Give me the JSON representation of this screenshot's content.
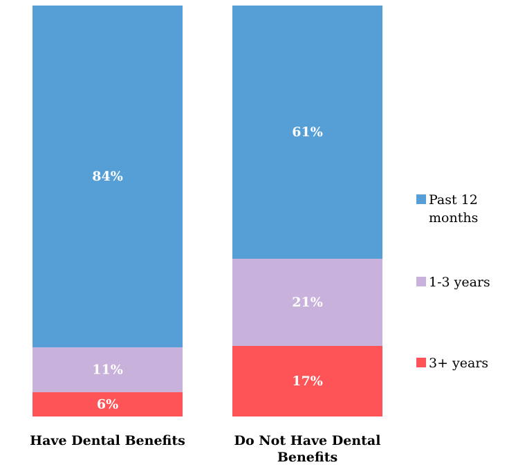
{
  "chart_data": {
    "type": "bar",
    "stacked": true,
    "percent_stacked": true,
    "categories": [
      "Have Dental Benefits",
      "Do Not Have Dental Benefits"
    ],
    "series": [
      {
        "name": "Past 12 months",
        "values": [
          84,
          61
        ],
        "labels": [
          "84%",
          "61%"
        ],
        "color": "#559fd6"
      },
      {
        "name": "1-3 years",
        "values": [
          11,
          21
        ],
        "labels": [
          "11%",
          "21%"
        ],
        "color": "#c8b1db"
      },
      {
        "name": "3+ years",
        "values": [
          6,
          17
        ],
        "labels": [
          "6%",
          "17%"
        ],
        "color": "#fe5457"
      }
    ],
    "ylim": [
      0,
      100
    ],
    "grid": false,
    "legend": "right"
  }
}
